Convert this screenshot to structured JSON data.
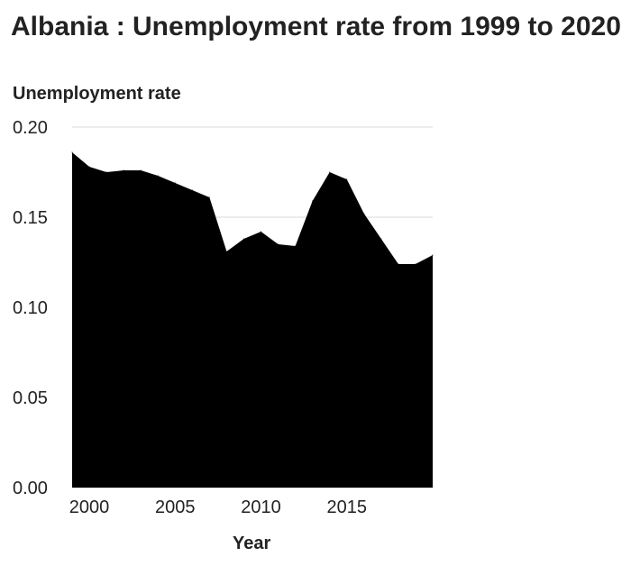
{
  "chart_data": {
    "type": "area",
    "title": "Albania : Unemployment rate from 1999 to 2020",
    "ylabel": "Unemployment rate",
    "xlabel": "Year",
    "x": [
      1999,
      2000,
      2001,
      2002,
      2003,
      2004,
      2005,
      2006,
      2007,
      2008,
      2009,
      2010,
      2011,
      2012,
      2013,
      2014,
      2015,
      2016,
      2017,
      2018,
      2019,
      2020
    ],
    "series": [
      {
        "values": [
          0.186,
          0.178,
          0.175,
          0.176,
          0.176,
          0.173,
          0.169,
          0.165,
          0.161,
          0.131,
          0.138,
          0.142,
          0.135,
          0.134,
          0.159,
          0.175,
          0.171,
          0.152,
          0.138,
          0.124,
          0.124,
          0.129
        ],
        "color": "#000000"
      }
    ],
    "xlim": [
      1999,
      2020
    ],
    "ylim": [
      0,
      0.2
    ],
    "xticks": [
      2000,
      2005,
      2010,
      2015
    ],
    "xtick_labels": [
      "2000",
      "2005",
      "2010",
      "2015"
    ],
    "yticks": [
      0,
      0.05,
      0.1,
      0.15,
      0.2
    ],
    "ytick_labels": [
      "0.00",
      "0.05",
      "0.10",
      "0.15",
      "0.20"
    ],
    "grid": "horizontal",
    "legend": "none"
  }
}
